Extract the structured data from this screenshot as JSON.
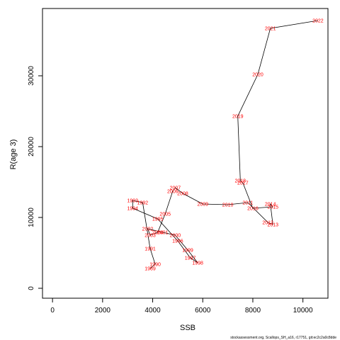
{
  "chart_data": {
    "type": "line",
    "xlabel": "SSB",
    "ylabel": "R(age 3)",
    "xlim": [
      -400,
      11000
    ],
    "ylim": [
      -1400,
      39500
    ],
    "x_ticks": [
      0,
      2000,
      4000,
      6000,
      8000,
      10000
    ],
    "y_ticks": [
      0,
      10000,
      20000,
      30000
    ],
    "grid": false,
    "line_color": "#000000",
    "label_color": "#ff0000",
    "points": [
      {
        "year": "1989",
        "x": 3900,
        "y": 2800
      },
      {
        "year": "1990",
        "x": 4100,
        "y": 3400
      },
      {
        "year": "1991",
        "x": 3900,
        "y": 5600
      },
      {
        "year": "1992",
        "x": 3600,
        "y": 12100
      },
      {
        "year": "1993",
        "x": 3200,
        "y": 12400
      },
      {
        "year": "1994",
        "x": 3200,
        "y": 11300
      },
      {
        "year": "1995",
        "x": 4200,
        "y": 9800
      },
      {
        "year": "1996",
        "x": 5000,
        "y": 6700
      },
      {
        "year": "1997",
        "x": 5500,
        "y": 4300
      },
      {
        "year": "1998",
        "x": 5800,
        "y": 3600
      },
      {
        "year": "1999",
        "x": 5400,
        "y": 5400
      },
      {
        "year": "2000",
        "x": 4900,
        "y": 7500
      },
      {
        "year": "2001",
        "x": 4400,
        "y": 7900
      },
      {
        "year": "2002",
        "x": 3800,
        "y": 8400
      },
      {
        "year": "2003",
        "x": 3900,
        "y": 7500
      },
      {
        "year": "2004",
        "x": 4200,
        "y": 7900
      },
      {
        "year": "2005",
        "x": 4500,
        "y": 10500
      },
      {
        "year": "2006",
        "x": 4800,
        "y": 13700
      },
      {
        "year": "2007",
        "x": 4900,
        "y": 14200
      },
      {
        "year": "2008",
        "x": 5200,
        "y": 13400
      },
      {
        "year": "2009",
        "x": 6000,
        "y": 11900
      },
      {
        "year": "2010",
        "x": 7000,
        "y": 11800
      },
      {
        "year": "2011",
        "x": 7800,
        "y": 12100
      },
      {
        "year": "2012",
        "x": 8600,
        "y": 9300
      },
      {
        "year": "2013",
        "x": 8800,
        "y": 9000
      },
      {
        "year": "2014",
        "x": 8700,
        "y": 11900
      },
      {
        "year": "2015",
        "x": 8800,
        "y": 11500
      },
      {
        "year": "2016",
        "x": 8000,
        "y": 11300
      },
      {
        "year": "2017",
        "x": 7600,
        "y": 14900
      },
      {
        "year": "2018",
        "x": 7500,
        "y": 15200
      },
      {
        "year": "2019",
        "x": 7400,
        "y": 24300
      },
      {
        "year": "2020",
        "x": 8200,
        "y": 30200
      },
      {
        "year": "2021",
        "x": 8700,
        "y": 36700
      },
      {
        "year": "2022",
        "x": 10600,
        "y": 37800
      }
    ]
  },
  "footer": "stockassessment.org, Scallops_SH_a16, r17751, git:ec2c2a0c8dde"
}
